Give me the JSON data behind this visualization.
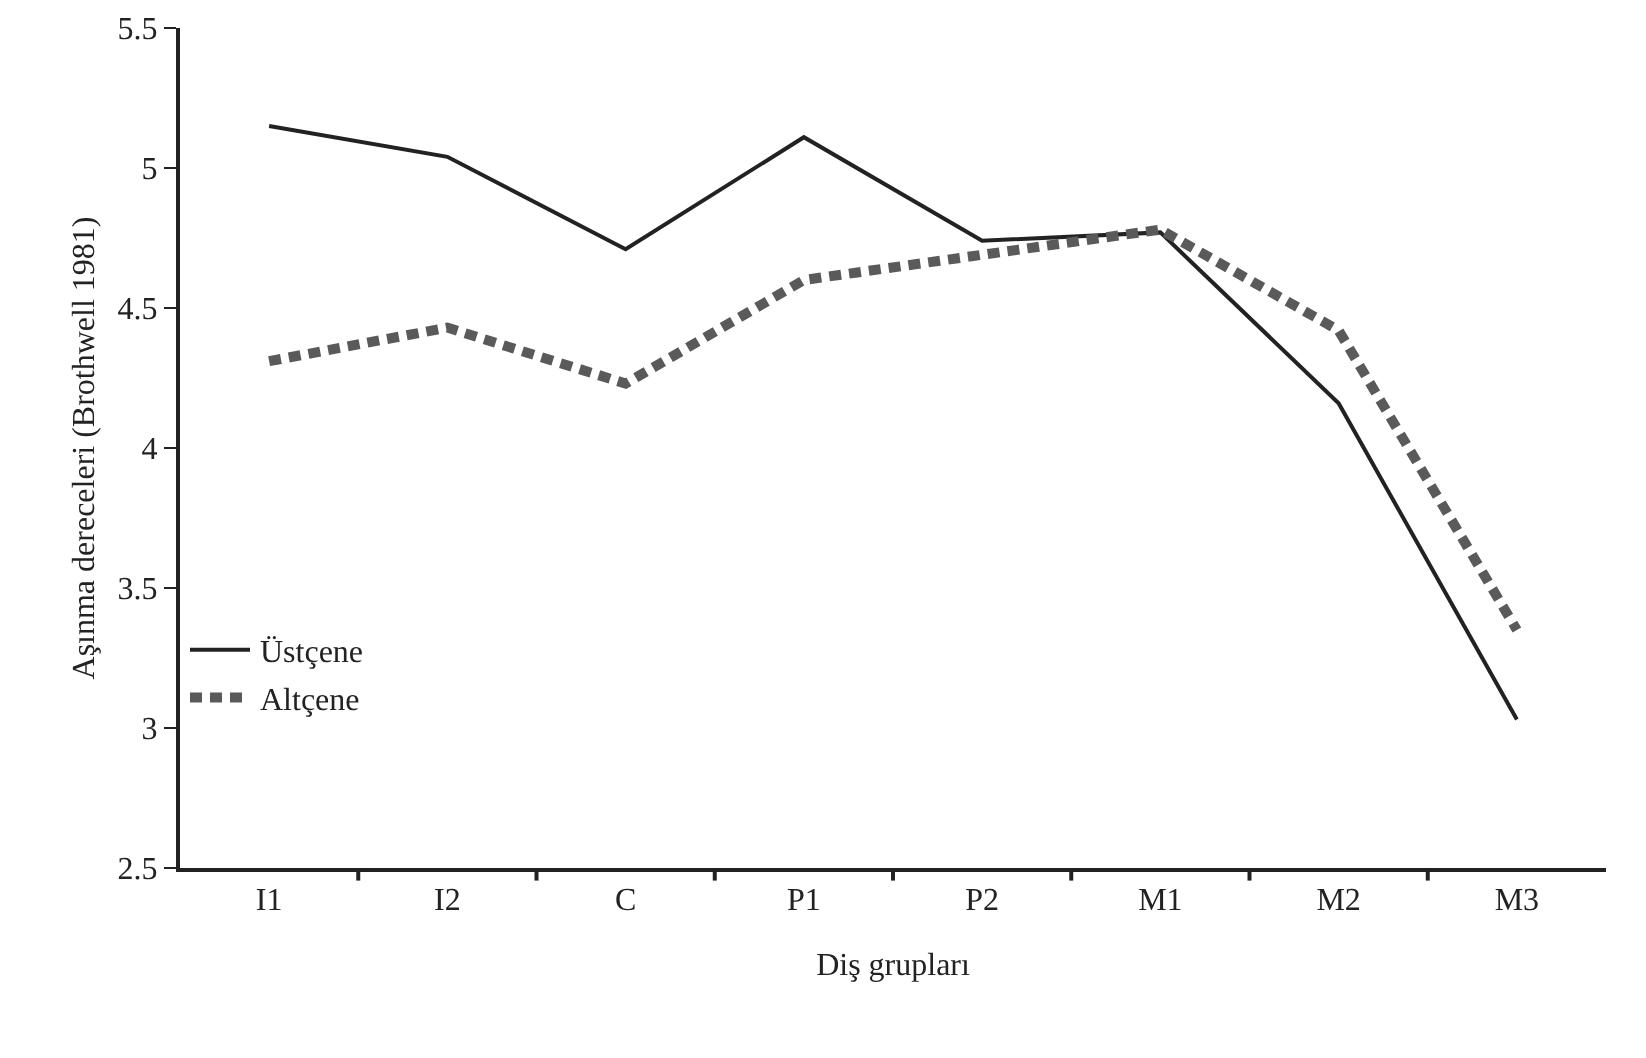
{
  "chart_data": {
    "type": "line",
    "xlabel": "Diş grupları",
    "ylabel": "Aşınma dereceleri (Brothwell 1981)",
    "categories": [
      "I1",
      "I2",
      "C",
      "P1",
      "P2",
      "M1",
      "M2",
      "M3"
    ],
    "series": [
      {
        "name": "Üstçene",
        "color": "#222222",
        "line_style": "solid",
        "values": [
          5.15,
          5.04,
          4.71,
          5.11,
          4.74,
          4.77,
          4.16,
          3.03
        ]
      },
      {
        "name": "Altçene",
        "color": "#5a5a5a",
        "line_style": "dashed",
        "values": [
          4.31,
          4.43,
          4.23,
          4.6,
          4.69,
          4.78,
          4.42,
          3.35
        ]
      }
    ],
    "ylim": [
      2.5,
      5.5
    ],
    "yticks": [
      2.5,
      3,
      3.5,
      4,
      4.5,
      5,
      5.5
    ],
    "grid": false,
    "legend": "bottom left",
    "marker": "none"
  }
}
